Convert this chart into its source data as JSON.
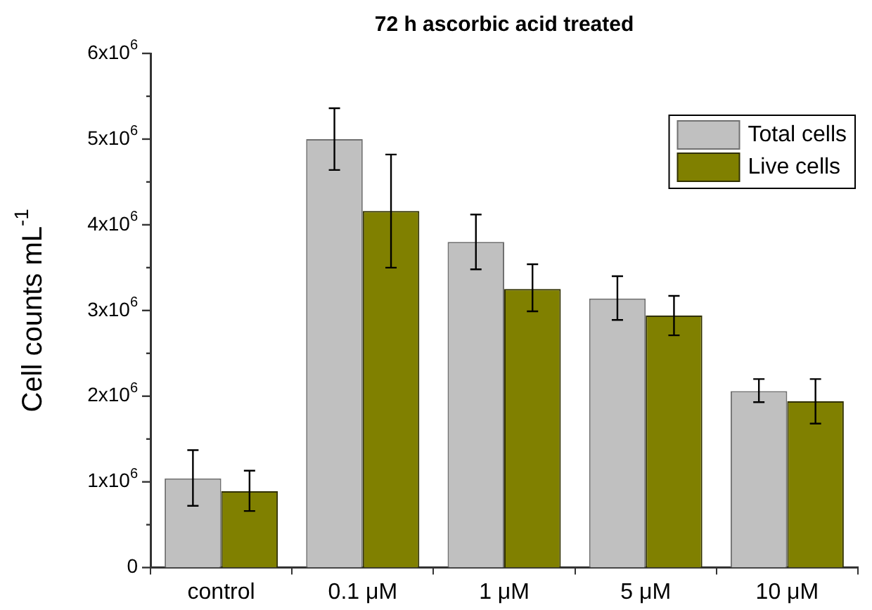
{
  "chart_data": {
    "type": "bar",
    "title": "72 h ascorbic acid treated",
    "ylabel": "Cell counts mL$^{-1}$",
    "categories": [
      "control",
      "0.1 μM",
      "1 μM",
      "5 μM",
      "10 μM"
    ],
    "series": [
      {
        "name": "Total cells",
        "color": "#c0c0c0",
        "values": [
          1040000,
          5000000,
          3800000,
          3140000,
          2060000
        ],
        "errors": [
          [
            720000,
            1370000
          ],
          [
            4640000,
            5360000
          ],
          [
            3480000,
            4120000
          ],
          [
            2890000,
            3400000
          ],
          [
            1930000,
            2200000
          ]
        ]
      },
      {
        "name": "Live cells",
        "color": "#808000",
        "values": [
          890000,
          4160000,
          3250000,
          2940000,
          1940000
        ],
        "errors": [
          [
            660000,
            1130000
          ],
          [
            3500000,
            4820000
          ],
          [
            2990000,
            3540000
          ],
          [
            2710000,
            3170000
          ],
          [
            1680000,
            2200000
          ]
        ]
      }
    ],
    "ylim": [
      0,
      6000000
    ],
    "yticks": [
      {
        "value": 0,
        "label": "0"
      },
      {
        "value": 500000,
        "label": null
      },
      {
        "value": 1000000,
        "label": "1x10$^{6}$"
      },
      {
        "value": 1500000,
        "label": null
      },
      {
        "value": 2000000,
        "label": "2x10$^{6}$"
      },
      {
        "value": 2500000,
        "label": null
      },
      {
        "value": 3000000,
        "label": "3x10$^{6}$"
      },
      {
        "value": 3500000,
        "label": null
      },
      {
        "value": 4000000,
        "label": "4x10$^{6}$"
      },
      {
        "value": 4500000,
        "label": null
      },
      {
        "value": 5000000,
        "label": "5x10$^{6}$"
      },
      {
        "value": 5500000,
        "label": null
      },
      {
        "value": 6000000,
        "label": "6x10$^{6}$"
      }
    ],
    "grid": false,
    "legend": "top right"
  }
}
